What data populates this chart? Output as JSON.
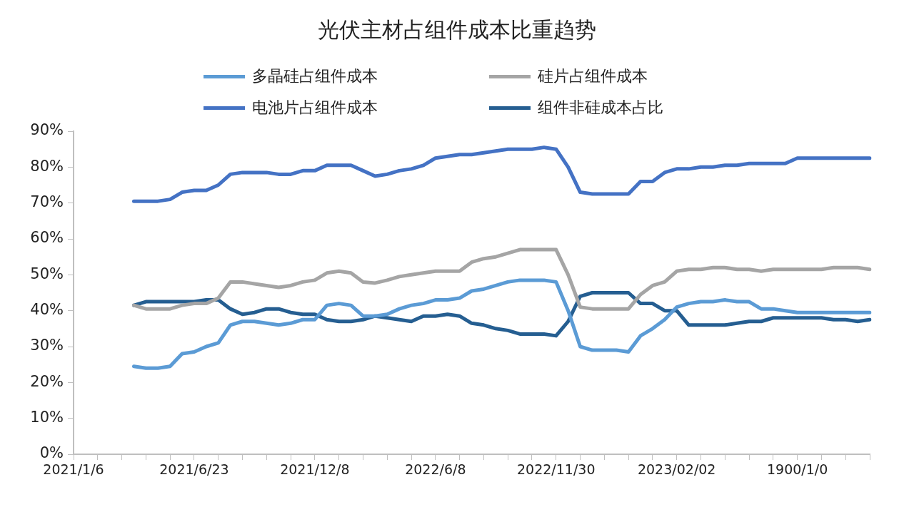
{
  "chart_data": {
    "type": "line",
    "title": "光伏主材占组件成本比重趋势",
    "categories": [
      "2021/1/6",
      null,
      null,
      null,
      null,
      null,
      null,
      null,
      null,
      null,
      "2021/6/23",
      null,
      null,
      null,
      null,
      null,
      null,
      null,
      null,
      null,
      "2021/12/8",
      null,
      null,
      null,
      null,
      null,
      null,
      null,
      null,
      null,
      "2022/6/8",
      null,
      null,
      null,
      null,
      null,
      null,
      null,
      null,
      null,
      "2022/11/30",
      null,
      null,
      null,
      null,
      null,
      null,
      null,
      null,
      null,
      "2023/02/02",
      null,
      null,
      null,
      null,
      null,
      null,
      null,
      null,
      null,
      "1900/1/0",
      null,
      null,
      null,
      null,
      null,
      null
    ],
    "series": [
      {
        "name": "多晶硅占组件成本",
        "color": "#5b9bd5",
        "values": [
          null,
          null,
          null,
          null,
          null,
          24.5,
          24,
          24,
          24.5,
          28,
          28.5,
          30,
          31,
          36,
          37,
          37,
          36.5,
          36,
          36.5,
          37.5,
          37.5,
          41.5,
          42,
          41.5,
          38.5,
          38.5,
          39,
          40.5,
          41.5,
          42,
          43,
          43,
          43.5,
          45.5,
          46,
          47,
          48,
          48.5,
          48.5,
          48.5,
          48,
          40,
          30,
          29,
          29,
          29,
          28.5,
          33,
          35,
          37.5,
          41,
          42,
          42.5,
          42.5,
          43,
          42.5,
          42.5,
          40.5,
          40.5,
          40,
          39.5,
          39.5,
          39.5,
          39.5,
          39.5,
          39.5,
          39.5
        ]
      },
      {
        "name": "硅片占组件成本",
        "color": "#a5a5a5",
        "values": [
          null,
          null,
          null,
          null,
          null,
          41.5,
          40.5,
          40.5,
          40.5,
          41.5,
          42,
          42,
          43.5,
          48,
          48,
          47.5,
          47,
          46.5,
          47,
          48,
          48.5,
          50.5,
          51,
          50.5,
          48,
          47.7,
          48.5,
          49.5,
          50,
          50.5,
          51,
          51,
          51,
          53.5,
          54.5,
          55,
          56,
          57,
          57,
          57,
          57,
          50,
          41,
          40.5,
          40.5,
          40.5,
          40.5,
          44.5,
          47,
          48,
          51,
          51.5,
          51.5,
          52,
          52,
          51.5,
          51.5,
          51,
          51.5,
          51.5,
          51.5,
          51.5,
          51.5,
          52,
          52,
          52,
          51.5
        ]
      },
      {
        "name": "电池片占组件成本",
        "color": "#4472c4",
        "values": [
          null,
          null,
          null,
          null,
          null,
          70.5,
          70.5,
          70.5,
          71,
          73,
          73.5,
          73.5,
          75,
          78,
          78.5,
          78.5,
          78.5,
          78,
          78,
          79,
          79,
          80.5,
          80.5,
          80.5,
          79,
          77.5,
          78,
          79,
          79.5,
          80.5,
          82.5,
          83,
          83.5,
          83.5,
          84,
          84.5,
          85,
          85,
          85,
          85.5,
          85,
          80,
          73,
          72.5,
          72.5,
          72.5,
          72.5,
          76,
          76,
          78.5,
          79.5,
          79.5,
          80,
          80,
          80.5,
          80.5,
          81,
          81,
          81,
          81,
          82.5,
          82.5,
          82.5,
          82.5,
          82.5,
          82.5,
          82.5
        ]
      },
      {
        "name": "组件非硅成本占比",
        "color": "#255e91",
        "values": [
          null,
          null,
          null,
          null,
          null,
          41.5,
          42.5,
          42.5,
          42.5,
          42.5,
          42.5,
          43,
          43,
          40.5,
          39,
          39.5,
          40.5,
          40.5,
          39.5,
          39,
          39,
          37.5,
          37,
          37,
          37.5,
          38.5,
          38,
          37.5,
          37,
          38.5,
          38.5,
          39,
          38.5,
          36.5,
          36,
          35,
          34.5,
          33.5,
          33.5,
          33.5,
          33,
          37,
          44,
          45,
          45,
          45,
          45,
          42,
          42,
          40,
          40,
          36,
          36,
          36,
          36,
          36.5,
          37,
          37,
          38,
          38,
          38,
          38,
          38,
          37.5,
          37.5,
          37,
          37.5
        ]
      }
    ],
    "ylim": [
      0,
      90
    ],
    "yticks": [
      {
        "value": 0,
        "label": "0%"
      },
      {
        "value": 10,
        "label": "10%"
      },
      {
        "value": 20,
        "label": "20%"
      },
      {
        "value": 30,
        "label": "30%"
      },
      {
        "value": 40,
        "label": "40%"
      },
      {
        "value": 50,
        "label": "50%"
      },
      {
        "value": 60,
        "label": "60%"
      },
      {
        "value": 70,
        "label": "70%"
      },
      {
        "value": 80,
        "label": "80%"
      },
      {
        "value": 90,
        "label": "90%"
      }
    ],
    "grid": false,
    "legend": "top",
    "marker": "none",
    "line_style": "solid"
  }
}
